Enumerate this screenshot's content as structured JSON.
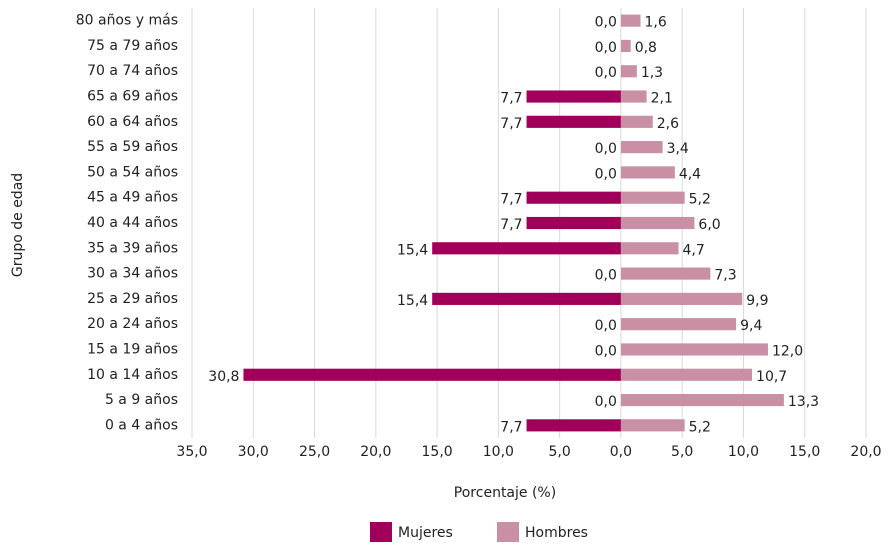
{
  "chart_data": {
    "type": "pyramid",
    "y_label": "Grupo de edad",
    "x_label": "Porcentaje (%)",
    "categories": [
      "80 años y más",
      "75 a 79 años",
      "70 a 74 años",
      "65 a 69 años",
      "60 a 64 años",
      "55 a 59 años",
      "50 a 54 años",
      "45 a 49 años",
      "40 a 44 años",
      "35 a 39 años",
      "30 a 34 años",
      "25 a 29 años",
      "20 a 24 años",
      "15 a 19 años",
      "10 a 14 años",
      "5 a 9 años",
      "0 a 4 años"
    ],
    "series": [
      {
        "name": "Mujeres",
        "color": "#a0005a",
        "values": [
          0,
          0,
          0,
          -7.7,
          -7.7,
          0,
          0,
          -7.7,
          -7.7,
          -15.4,
          0,
          -15.4,
          0,
          0,
          -30.8,
          0,
          -7.7
        ],
        "value_labels": [
          "0,0",
          "0,0",
          "0,0",
          "7,7",
          "7,7",
          "0,0",
          "0,0",
          "7,7",
          "7,7",
          "15,4",
          "0,0",
          "15,4",
          "0,0",
          "0,0",
          "30,8",
          "0,0",
          "7,7"
        ]
      },
      {
        "name": "Hombres",
        "color": "#c98fa5",
        "values": [
          1.6,
          0.8,
          1.3,
          2.1,
          2.6,
          3.4,
          4.4,
          5.2,
          6.0,
          4.7,
          7.3,
          9.9,
          9.4,
          12.0,
          10.7,
          13.3,
          5.2
        ],
        "value_labels": [
          "1,6",
          "0,8",
          "1,3",
          "2,1",
          "2,6",
          "3,4",
          "4,4",
          "5,2",
          "6,0",
          "4,7",
          "7,3",
          "9,9",
          "9,4",
          "12,0",
          "10,7",
          "13,3",
          "5,2"
        ]
      }
    ],
    "xlim": [
      -35,
      20
    ],
    "xticks": [
      {
        "value": -35,
        "label": "35,0"
      },
      {
        "value": -30,
        "label": "30,0"
      },
      {
        "value": -25,
        "label": "25,0"
      },
      {
        "value": -20,
        "label": "20,0"
      },
      {
        "value": -15,
        "label": "15,0"
      },
      {
        "value": -10,
        "label": "10,0"
      },
      {
        "value": -5,
        "label": "5,0"
      },
      {
        "value": 0,
        "label": "0,0"
      },
      {
        "value": 5,
        "label": "5,0"
      },
      {
        "value": 10,
        "label": "10,0"
      },
      {
        "value": 15,
        "label": "15,0"
      },
      {
        "value": 20,
        "label": "20,0"
      }
    ],
    "grid": true
  }
}
